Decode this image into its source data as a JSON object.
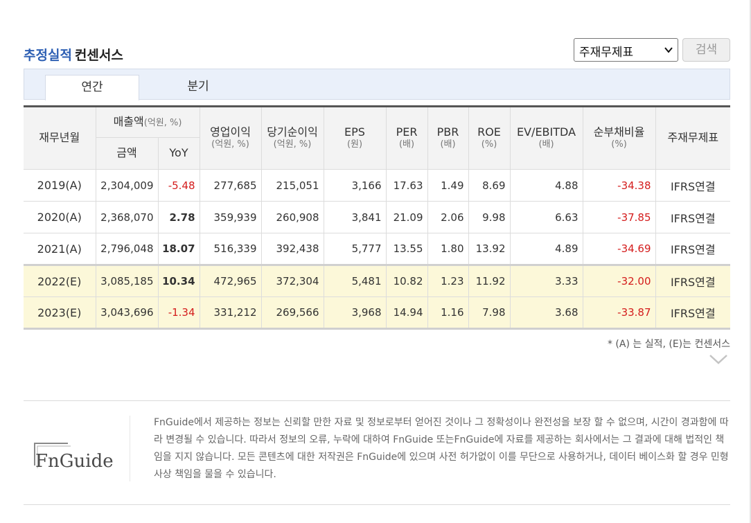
{
  "header": {
    "title_highlight": "추정실적",
    "title_rest": "컨센서스",
    "select_value": "주재무제표",
    "search_label": "검색"
  },
  "tabs": [
    {
      "label": "연간",
      "active": true
    },
    {
      "label": "분기",
      "active": false
    }
  ],
  "table": {
    "head": {
      "year": "재무년월",
      "sales": "매출액",
      "sales_unit": "(억원, %)",
      "amount": "금액",
      "yoy": "YoY",
      "op_income": "영업이익",
      "op_income_unit": "(억원, %)",
      "net_income": "당기순이익",
      "net_income_unit": "(억원, %)",
      "eps": "EPS",
      "eps_unit": "(원)",
      "per": "PER",
      "per_unit": "(배)",
      "pbr": "PBR",
      "pbr_unit": "(배)",
      "roe": "ROE",
      "roe_unit": "(%)",
      "ev_ebitda": "EV/EBITDA",
      "ev_ebitda_unit": "(배)",
      "debt_ratio": "순부채비율",
      "debt_ratio_unit": "(%)",
      "standard": "주재무제표"
    },
    "rows": [
      {
        "year": "2019(A)",
        "amount": "2,304,009",
        "yoy": "-5.48",
        "op": "277,685",
        "net": "215,051",
        "eps": "3,166",
        "per": "17.63",
        "pbr": "1.49",
        "roe": "8.69",
        "ev": "4.88",
        "debt": "-34.38",
        "std": "IFRS연결"
      },
      {
        "year": "2020(A)",
        "amount": "2,368,070",
        "yoy": "2.78",
        "op": "359,939",
        "net": "260,908",
        "eps": "3,841",
        "per": "21.09",
        "pbr": "2.06",
        "roe": "9.98",
        "ev": "6.63",
        "debt": "-37.85",
        "std": "IFRS연결"
      },
      {
        "year": "2021(A)",
        "amount": "2,796,048",
        "yoy": "18.07",
        "op": "516,339",
        "net": "392,438",
        "eps": "5,777",
        "per": "13.55",
        "pbr": "1.80",
        "roe": "13.92",
        "ev": "4.89",
        "debt": "-34.69",
        "std": "IFRS연결"
      },
      {
        "year": "2022(E)",
        "amount": "3,085,185",
        "yoy": "10.34",
        "op": "472,965",
        "net": "372,304",
        "eps": "5,481",
        "per": "10.82",
        "pbr": "1.23",
        "roe": "11.92",
        "ev": "3.33",
        "debt": "-32.00",
        "std": "IFRS연결"
      },
      {
        "year": "2023(E)",
        "amount": "3,043,696",
        "yoy": "-1.34",
        "op": "331,212",
        "net": "269,566",
        "eps": "3,968",
        "per": "14.94",
        "pbr": "1.16",
        "roe": "7.98",
        "ev": "3.68",
        "debt": "-33.87",
        "std": "IFRS연결"
      }
    ]
  },
  "note": "* (A) 는 실적, (E)는 컨센서스",
  "footer": {
    "logo_text": "FnGuide",
    "disclaimer": "FnGuide에서 제공하는 정보는 신뢰할 만한 자료 및 정보로부터 얻어진 것이나 그 정확성이나 완전성을 보장 할 수 없으며, 시간이 경과함에 따라 변경될 수 있습니다. 따라서 정보의 오류, 누락에 대하여 FnGuide 또는FnGuide에 자료를 제공하는 회사에서는 그 결과에 대해 법적인 책임을 지지 않습니다. 모든 콘텐츠에 대한 저작권은 FnGuide에 있으며 사전 허가없이 이를 무단으로 사용하거나, 데이터 베이스화 할 경우 민형사상 책임을 물을 수 있습니다."
  },
  "colors": {
    "accent_blue": "#2d5fb3",
    "negative_red": "#d41c1c",
    "estimate_row_bg": "#fcf8d9",
    "tab_bar_bg": "#eaf0fa"
  },
  "icons": {
    "select_chevron": "chevron-down-icon",
    "expand": "chevron-down-icon"
  }
}
